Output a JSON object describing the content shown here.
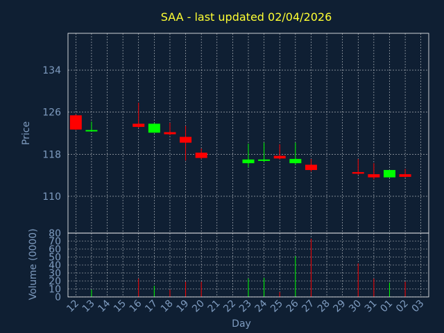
{
  "chart_data": {
    "type": "candlestick",
    "title": "SAA - last updated 02/04/2026",
    "price_ylabel": "Price",
    "volume_ylabel": "Volume (0000)",
    "xlabel": "Day",
    "price_yticks": [
      "134",
      "126",
      "118",
      "110"
    ],
    "volume_yticks": [
      "80",
      "70",
      "60",
      "50",
      "40",
      "30",
      "20",
      "10",
      "0"
    ],
    "x_ticks": [
      "12",
      "13",
      "14",
      "15",
      "16",
      "17",
      "18",
      "19",
      "20",
      "21",
      "22",
      "23",
      "24",
      "25",
      "26",
      "27",
      "28",
      "29",
      "30",
      "31",
      "01",
      "02",
      "03"
    ],
    "price_ylim": [
      103,
      141
    ],
    "volume_ylim": [
      0,
      80
    ],
    "colors": {
      "up": "#00ff00",
      "down": "#ff0000",
      "title": "#ffff33",
      "axis_text": "#7f9cc0",
      "background": "#0f1f33"
    },
    "candles": [
      {
        "x": "12",
        "open": 125.4,
        "high": 125.6,
        "low": 122.6,
        "close": 122.7,
        "volume": 0
      },
      {
        "x": "13",
        "open": 122.4,
        "high": 124.2,
        "low": 122.4,
        "close": 122.6,
        "volume": 9
      },
      {
        "x": "16",
        "open": 123.8,
        "high": 127.8,
        "low": 123.0,
        "close": 123.2,
        "volume": 23
      },
      {
        "x": "17",
        "open": 122.1,
        "high": 123.9,
        "low": 122.1,
        "close": 123.8,
        "volume": 14
      },
      {
        "x": "18",
        "open": 122.2,
        "high": 124.0,
        "low": 121.6,
        "close": 121.8,
        "volume": 9
      },
      {
        "x": "19",
        "open": 121.3,
        "high": 123.4,
        "low": 116.8,
        "close": 120.2,
        "volume": 19
      },
      {
        "x": "20",
        "open": 118.3,
        "high": 119.1,
        "low": 117.1,
        "close": 117.3,
        "volume": 19
      },
      {
        "x": "23",
        "open": 116.3,
        "high": 120.0,
        "low": 115.5,
        "close": 117.0,
        "volume": 23
      },
      {
        "x": "24",
        "open": 116.8,
        "high": 120.2,
        "low": 116.5,
        "close": 117.0,
        "volume": 24
      },
      {
        "x": "25",
        "open": 117.7,
        "high": 119.9,
        "low": 117.0,
        "close": 117.2,
        "volume": 6
      },
      {
        "x": "26",
        "open": 116.3,
        "high": 120.2,
        "low": 116.0,
        "close": 117.1,
        "volume": 51
      },
      {
        "x": "27",
        "open": 116.0,
        "high": 117.1,
        "low": 114.7,
        "close": 115.0,
        "volume": 73
      },
      {
        "x": "30",
        "open": 114.6,
        "high": 117.1,
        "low": 114.1,
        "close": 114.3,
        "volume": 42
      },
      {
        "x": "31",
        "open": 114.2,
        "high": 116.3,
        "low": 113.2,
        "close": 113.6,
        "volume": 23
      },
      {
        "x": "01",
        "open": 113.6,
        "high": 115.0,
        "low": 113.6,
        "close": 115.0,
        "volume": 18
      },
      {
        "x": "02",
        "open": 114.2,
        "high": 115.2,
        "low": 113.6,
        "close": 113.7,
        "volume": 19
      }
    ]
  }
}
